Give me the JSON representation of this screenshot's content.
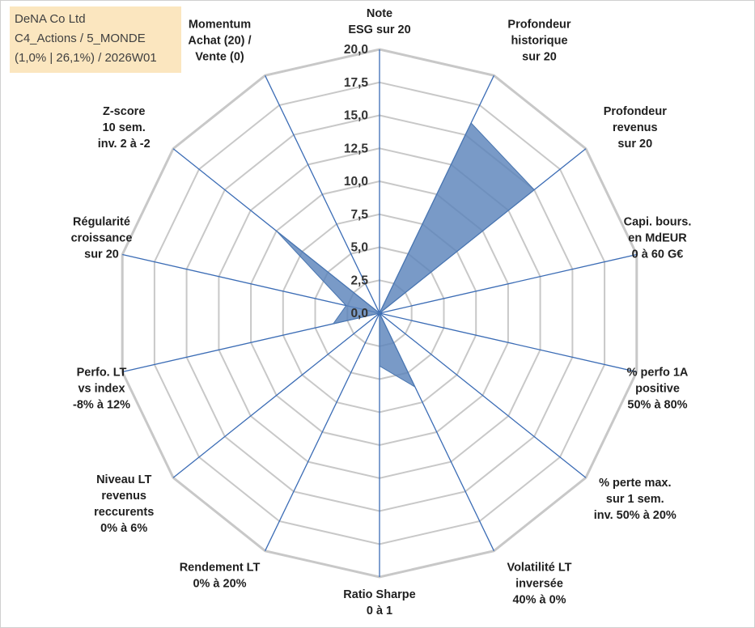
{
  "header": {
    "line1": "DeNA Co Ltd",
    "line2": "C4_Actions / 5_MONDE",
    "line3": "(1,0% | 26,1%) / 2026W01"
  },
  "colors": {
    "grid": "#c8c8c8",
    "spoke": "#3b6cb5",
    "fill": "#5b84bb",
    "box": "#fbe6bf"
  },
  "chart_data": {
    "type": "radar",
    "scale": [
      0,
      20
    ],
    "ticks": [
      "0,0",
      "2,5",
      "5,0",
      "7,5",
      "10,0",
      "12,5",
      "15,0",
      "17,5",
      "20,0"
    ],
    "axes": [
      {
        "label": [
          "Note",
          "ESG sur 20"
        ],
        "value": 0
      },
      {
        "label": [
          "Profondeur",
          "historique",
          "sur 20"
        ],
        "value": 16
      },
      {
        "label": [
          "Profondeur",
          "revenus",
          "sur 20"
        ],
        "value": 15
      },
      {
        "label": [
          "Capi. bours.",
          "en MdEUR",
          "0 à 60 G€"
        ],
        "value": 0
      },
      {
        "label": [
          "% perfo 1A",
          "positive",
          "50% à 80%"
        ],
        "value": 0
      },
      {
        "label": [
          "% perte max.",
          "sur 1 sem.",
          "inv. 50% à 20%"
        ],
        "value": 0
      },
      {
        "label": [
          "Volatilité LT",
          "inversée",
          "40% à 0%"
        ],
        "value": 6.2
      },
      {
        "label": [
          "Ratio Sharpe",
          "0 à 1"
        ],
        "value": 4
      },
      {
        "label": [
          "Rendement LT",
          "0% à 20%"
        ],
        "value": 0
      },
      {
        "label": [
          "Niveau LT",
          "revenus",
          "reccurents",
          "0% à 6%"
        ],
        "value": 0
      },
      {
        "label": [
          "Perfo. LT",
          "vs index",
          "-8% à 12%"
        ],
        "value": 3.6
      },
      {
        "label": [
          "Régularité",
          "croissance",
          "sur 20"
        ],
        "value": 2.6
      },
      {
        "label": [
          "Z-score",
          "10 sem.",
          "inv. 2 à -2"
        ],
        "value": 10
      },
      {
        "label": [
          "Momentum",
          "Achat (20) /",
          "Vente (0)"
        ],
        "value": 0
      }
    ]
  }
}
